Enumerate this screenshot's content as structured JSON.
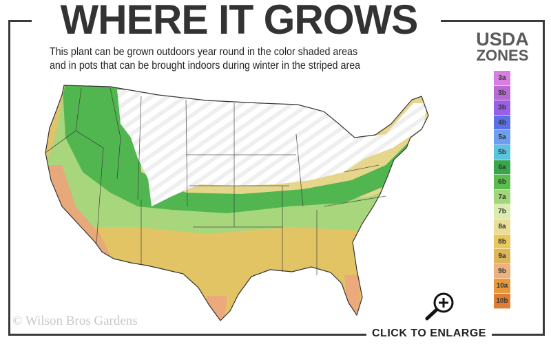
{
  "header": {
    "title": "WHERE IT GROWS",
    "subtitle_line1": "This plant can be grown outdoors year round in the color shaded areas",
    "subtitle_line2": "and in pots that can be brought indoors during winter in the striped area"
  },
  "legend": {
    "title_line1": "USDA",
    "title_line2": "ZONES",
    "zones": [
      {
        "label": "3a",
        "color": "#d77fe0"
      },
      {
        "label": "3b",
        "color": "#b96ad2"
      },
      {
        "label": "3b",
        "color": "#9a5fe6"
      },
      {
        "label": "4b",
        "color": "#5b70e6"
      },
      {
        "label": "5a",
        "color": "#6e9ef2"
      },
      {
        "label": "5b",
        "color": "#5ac4dc"
      },
      {
        "label": "6a",
        "color": "#38a74a"
      },
      {
        "label": "6b",
        "color": "#5cbc4e"
      },
      {
        "label": "7a",
        "color": "#a2d67a"
      },
      {
        "label": "7b",
        "color": "#dcebb0"
      },
      {
        "label": "8a",
        "color": "#eadd98"
      },
      {
        "label": "8b",
        "color": "#e8c85a"
      },
      {
        "label": "9a",
        "color": "#dcb65a"
      },
      {
        "label": "9b",
        "color": "#eeb07e"
      },
      {
        "label": "10a",
        "color": "#e79a3c"
      },
      {
        "label": "10b",
        "color": "#df7f36"
      }
    ]
  },
  "map": {
    "striped_area_color": "#ffffff",
    "stripe_color": "#ececec",
    "border_color": "#333333"
  },
  "footer": {
    "copyright": "© Wilson Bros Gardens",
    "enlarge_label": "CLICK TO ENLARGE",
    "enlarge_icon": "magnifier-plus-icon"
  }
}
